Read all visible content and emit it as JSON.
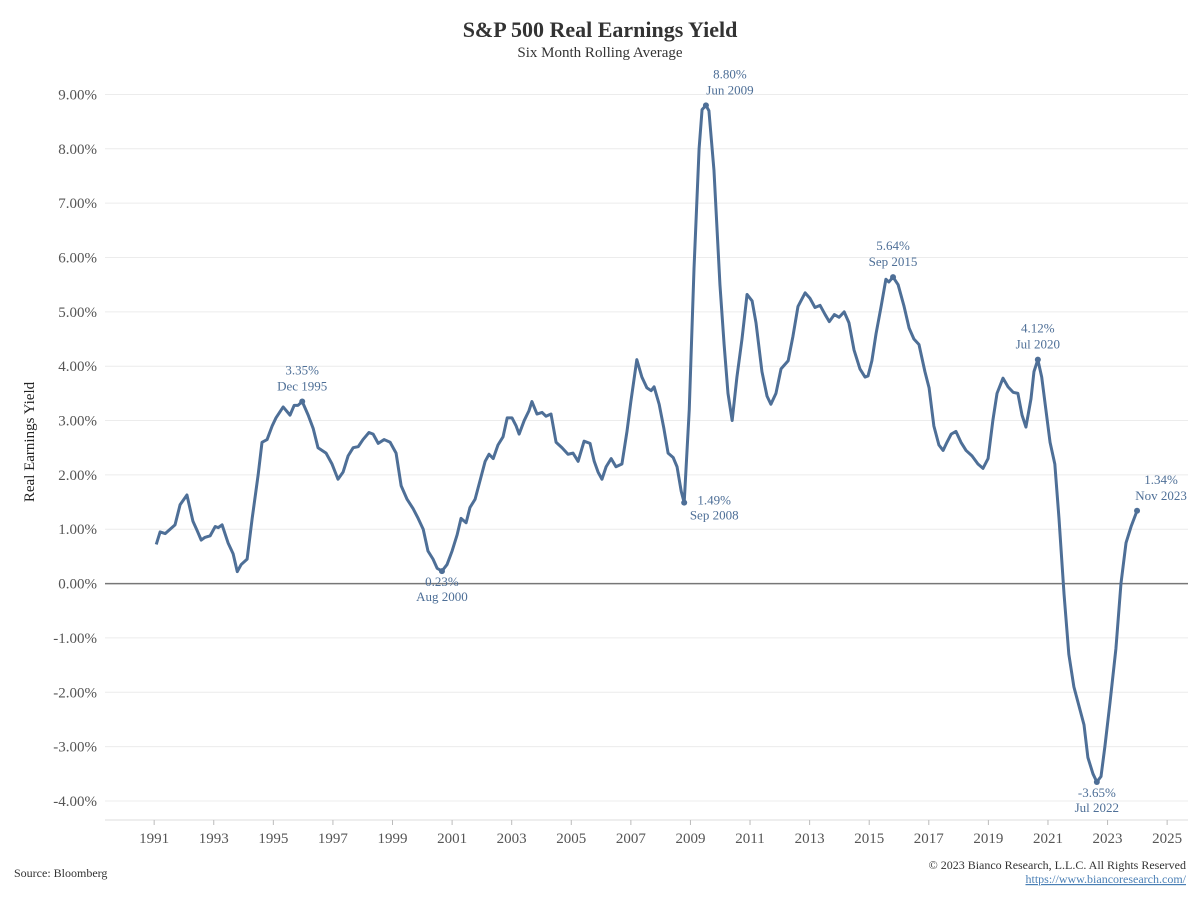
{
  "chart_data": {
    "type": "line",
    "title": "S&P 500 Real Earnings Yield",
    "subtitle": "Six Month Rolling Average",
    "y_label": "Real Earnings Yield",
    "source": "Source: Bloomberg",
    "copyright": "© 2023 Bianco Research, L.L.C. All Rights Reserved",
    "link": "https://www.biancoresearch.com/",
    "xlim": [
      1989.35,
      2025.7
    ],
    "ylim": [
      -4.35,
      9.45
    ],
    "xticks": [
      1991,
      1993,
      1995,
      1997,
      1999,
      2001,
      2003,
      2005,
      2007,
      2009,
      2011,
      2013,
      2015,
      2017,
      2019,
      2021,
      2023,
      2025
    ],
    "yticks": [
      {
        "value": 9,
        "label": "9.00%"
      },
      {
        "value": 8,
        "label": "8.00%"
      },
      {
        "value": 7,
        "label": "7.00%"
      },
      {
        "value": 6,
        "label": "6.00%"
      },
      {
        "value": 5,
        "label": "5.00%"
      },
      {
        "value": 4,
        "label": "4.00%"
      },
      {
        "value": 3,
        "label": "3.00%"
      },
      {
        "value": 2,
        "label": "2.00%"
      },
      {
        "value": 1,
        "label": "1.00%"
      },
      {
        "value": 0,
        "label": "0.00%"
      },
      {
        "value": -1,
        "label": "-1.00%"
      },
      {
        "value": -2,
        "label": "-2.00%"
      },
      {
        "value": -3,
        "label": "-3.00%"
      },
      {
        "value": -4,
        "label": "-4.00%"
      }
    ],
    "grid": true,
    "x": [
      1991.07,
      1991.2,
      1991.37,
      1991.7,
      1991.87,
      1992.1,
      1992.3,
      1992.44,
      1992.58,
      1992.7,
      1992.88,
      1993.05,
      1993.15,
      1993.28,
      1993.48,
      1993.65,
      1993.79,
      1993.92,
      1994.12,
      1994.29,
      1994.49,
      1994.62,
      1994.79,
      1994.96,
      1995.09,
      1995.33,
      1995.56,
      1995.7,
      1995.83,
      1995.97,
      1996.17,
      1996.34,
      1996.5,
      1996.77,
      1996.97,
      1997.17,
      1997.34,
      1997.51,
      1997.68,
      1997.85,
      1998.01,
      1998.21,
      1998.35,
      1998.52,
      1998.72,
      1998.92,
      1999.12,
      1999.29,
      1999.49,
      1999.69,
      1999.86,
      2000.03,
      2000.19,
      2000.36,
      2000.5,
      2000.66,
      2000.83,
      2001.0,
      2001.17,
      2001.3,
      2001.47,
      2001.6,
      2001.77,
      2001.94,
      2002.11,
      2002.24,
      2002.38,
      2002.54,
      2002.71,
      2002.85,
      2003.01,
      2003.15,
      2003.25,
      2003.42,
      2003.58,
      2003.68,
      2003.85,
      2004.02,
      2004.15,
      2004.32,
      2004.49,
      2004.69,
      2004.89,
      2005.06,
      2005.23,
      2005.43,
      2005.63,
      2005.77,
      2005.9,
      2006.03,
      2006.17,
      2006.34,
      2006.5,
      2006.7,
      2006.87,
      2007.0,
      2007.2,
      2007.37,
      2007.54,
      2007.68,
      2007.78,
      2007.95,
      2008.11,
      2008.25,
      2008.42,
      2008.55,
      2008.69,
      2008.79,
      2008.96,
      2009.12,
      2009.29,
      2009.39,
      2009.52,
      2009.62,
      2009.79,
      2009.99,
      2010.13,
      2010.26,
      2010.4,
      2010.56,
      2010.73,
      2010.9,
      2011.07,
      2011.2,
      2011.4,
      2011.57,
      2011.7,
      2011.87,
      2012.04,
      2012.28,
      2012.44,
      2012.61,
      2012.85,
      2013.01,
      2013.18,
      2013.35,
      2013.52,
      2013.66,
      2013.83,
      2013.99,
      2014.16,
      2014.32,
      2014.49,
      2014.69,
      2014.86,
      2014.96,
      2015.09,
      2015.23,
      2015.4,
      2015.56,
      2015.66,
      2015.8,
      2015.97,
      2016.17,
      2016.34,
      2016.5,
      2016.67,
      2016.87,
      2017.01,
      2017.17,
      2017.34,
      2017.48,
      2017.61,
      2017.75,
      2017.91,
      2018.08,
      2018.25,
      2018.45,
      2018.65,
      2018.82,
      2018.99,
      2019.15,
      2019.29,
      2019.49,
      2019.66,
      2019.83,
      2019.99,
      2020.13,
      2020.26,
      2020.43,
      2020.53,
      2020.66,
      2020.79,
      2020.93,
      2021.07,
      2021.23,
      2021.37,
      2021.54,
      2021.7,
      2021.87,
      2022.04,
      2022.21,
      2022.34,
      2022.51,
      2022.64,
      2022.78,
      2022.91,
      2023.08,
      2023.28,
      2023.45,
      2023.62,
      2023.79,
      2023.99
    ],
    "series": [
      {
        "name": "Real Earnings Yield",
        "color": "#4e6f97",
        "values": [
          0.72,
          0.95,
          0.92,
          1.08,
          1.45,
          1.63,
          1.15,
          0.98,
          0.8,
          0.85,
          0.88,
          1.05,
          1.03,
          1.08,
          0.75,
          0.55,
          0.22,
          0.35,
          0.45,
          1.2,
          2.0,
          2.6,
          2.65,
          2.9,
          3.05,
          3.25,
          3.1,
          3.28,
          3.28,
          3.35,
          3.1,
          2.85,
          2.5,
          2.4,
          2.2,
          1.92,
          2.05,
          2.35,
          2.5,
          2.52,
          2.65,
          2.78,
          2.75,
          2.58,
          2.65,
          2.6,
          2.4,
          1.8,
          1.55,
          1.38,
          1.2,
          1.0,
          0.6,
          0.45,
          0.28,
          0.23,
          0.35,
          0.6,
          0.9,
          1.2,
          1.12,
          1.4,
          1.55,
          1.9,
          2.25,
          2.38,
          2.3,
          2.55,
          2.7,
          3.05,
          3.05,
          2.9,
          2.75,
          3.0,
          3.18,
          3.35,
          3.12,
          3.15,
          3.08,
          3.12,
          2.6,
          2.5,
          2.38,
          2.4,
          2.25,
          2.62,
          2.58,
          2.25,
          2.05,
          1.92,
          2.15,
          2.3,
          2.15,
          2.2,
          2.8,
          3.35,
          4.12,
          3.8,
          3.6,
          3.55,
          3.62,
          3.3,
          2.85,
          2.4,
          2.32,
          2.15,
          1.7,
          1.49,
          3.2,
          5.8,
          8.0,
          8.72,
          8.8,
          8.7,
          7.6,
          5.5,
          4.4,
          3.5,
          3.0,
          3.8,
          4.5,
          5.32,
          5.2,
          4.8,
          3.9,
          3.45,
          3.3,
          3.5,
          3.95,
          4.1,
          4.55,
          5.1,
          5.35,
          5.25,
          5.08,
          5.12,
          4.95,
          4.82,
          4.95,
          4.9,
          5.0,
          4.8,
          4.3,
          3.95,
          3.8,
          3.82,
          4.1,
          4.6,
          5.1,
          5.6,
          5.55,
          5.64,
          5.5,
          5.1,
          4.7,
          4.5,
          4.4,
          3.9,
          3.6,
          2.9,
          2.55,
          2.45,
          2.6,
          2.75,
          2.8,
          2.6,
          2.45,
          2.35,
          2.2,
          2.12,
          2.3,
          3.0,
          3.5,
          3.78,
          3.62,
          3.52,
          3.5,
          3.1,
          2.88,
          3.4,
          3.9,
          4.12,
          3.8,
          3.2,
          2.6,
          2.2,
          1.2,
          -0.2,
          -1.3,
          -1.9,
          -2.25,
          -2.6,
          -3.2,
          -3.5,
          -3.65,
          -3.55,
          -3.0,
          -2.2,
          -1.2,
          0.0,
          0.75,
          1.05,
          1.34
        ]
      }
    ],
    "annotations": [
      {
        "x": 1995.97,
        "value": 3.35,
        "label": "3.35%",
        "date": "Dec 1995",
        "position": "above"
      },
      {
        "x": 2000.66,
        "value": 0.23,
        "label": "0.23%",
        "date": "Aug 2000",
        "position": "below"
      },
      {
        "x": 2008.79,
        "value": 1.49,
        "label": "1.49%",
        "date": "Sep 2008",
        "position": "below-right"
      },
      {
        "x": 2009.52,
        "value": 8.8,
        "label": "8.80%",
        "date": "Jun 2009",
        "position": "above-right"
      },
      {
        "x": 2015.8,
        "value": 5.64,
        "label": "5.64%",
        "date": "Sep 2015",
        "position": "above"
      },
      {
        "x": 2020.66,
        "value": 4.12,
        "label": "4.12%",
        "date": "Jul 2020",
        "position": "above"
      },
      {
        "x": 2022.64,
        "value": -3.65,
        "label": "-3.65%",
        "date": "Jul 2022",
        "position": "below"
      },
      {
        "x": 2023.99,
        "value": 1.34,
        "label": "1.34%",
        "date": "Nov 2023",
        "position": "above-right"
      }
    ]
  }
}
